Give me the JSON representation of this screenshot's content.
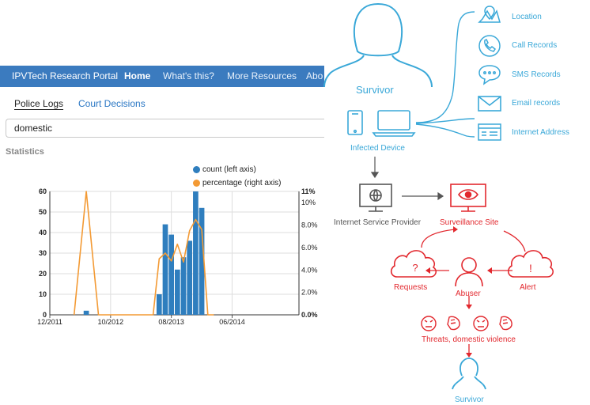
{
  "portal": {
    "nav": {
      "brand": "IPVTech Research Portal",
      "items": [
        {
          "label": "Home",
          "active": true
        },
        {
          "label": "What's this?",
          "active": false
        },
        {
          "label": "More Resources",
          "active": false
        },
        {
          "label": "Abo",
          "active": false
        }
      ],
      "bg_color": "#3b7bbf"
    },
    "tabs": [
      {
        "label": "Police Logs",
        "active": true
      },
      {
        "label": "Court Decisions",
        "active": false
      }
    ],
    "search": {
      "value": "domestic"
    },
    "section_title": "Statistics",
    "legend": [
      {
        "label": "count (left axis)",
        "color": "#2f7ebe"
      },
      {
        "label": "percentage (right axis)",
        "color": "#f39a34"
      }
    ]
  },
  "chart_data": {
    "type": "bar",
    "x": {
      "ticks": [
        "12/2011",
        "10/2012",
        "08/2013",
        "06/2014"
      ]
    },
    "y_left": {
      "ticks": [
        "60",
        "50",
        "40",
        "30",
        "20",
        "10",
        "0"
      ],
      "ylim": [
        0,
        60
      ]
    },
    "y_right": {
      "ticks": [
        "11%",
        "10%",
        "8.0%",
        "6.0%",
        "4.0%",
        "2.0%",
        "0.0%"
      ],
      "ylim": [
        0,
        11
      ]
    },
    "series": [
      {
        "name": "count (left axis)",
        "kind": "bar",
        "color": "#2f7ebe",
        "x": [
          "06/2012",
          "06/2013",
          "07/2013",
          "08/2013",
          "09/2013",
          "10/2013",
          "11/2013",
          "12/2013",
          "01/2014",
          "02/2014"
        ],
        "values": [
          2,
          10,
          44,
          39,
          22,
          28,
          36,
          60,
          52,
          0
        ]
      },
      {
        "name": "percentage (right axis)",
        "kind": "line",
        "color": "#f39a34",
        "x": [
          "04/2012",
          "06/2012",
          "08/2012",
          "05/2013",
          "06/2013",
          "07/2013",
          "08/2013",
          "09/2013",
          "10/2013",
          "11/2013",
          "12/2013",
          "01/2014",
          "02/2014",
          "03/2014"
        ],
        "values": [
          0,
          11,
          0,
          0,
          5,
          5.5,
          4.8,
          6.3,
          4.7,
          7.5,
          8.5,
          7.6,
          0,
          0
        ]
      }
    ],
    "grid": true
  },
  "diagram": {
    "survivor_top": "Survivor",
    "infected_device": "Infected Device",
    "data_items": [
      "Location",
      "Call Records",
      "SMS Records",
      "Email records",
      "Internet Address"
    ],
    "isp": "Internet Service Provider",
    "surveillance_site": "Surveillance Site",
    "requests": "Requests",
    "requests_icon_text": "?",
    "abuser": "Abuser",
    "alert": "Alert",
    "alert_icon_text": "!",
    "threats": "Threats, domestic violence",
    "survivor_bottom": "Survivor",
    "colors": {
      "blue": "#3aa8d8",
      "red": "#e2282e",
      "gray": "#555555"
    }
  }
}
